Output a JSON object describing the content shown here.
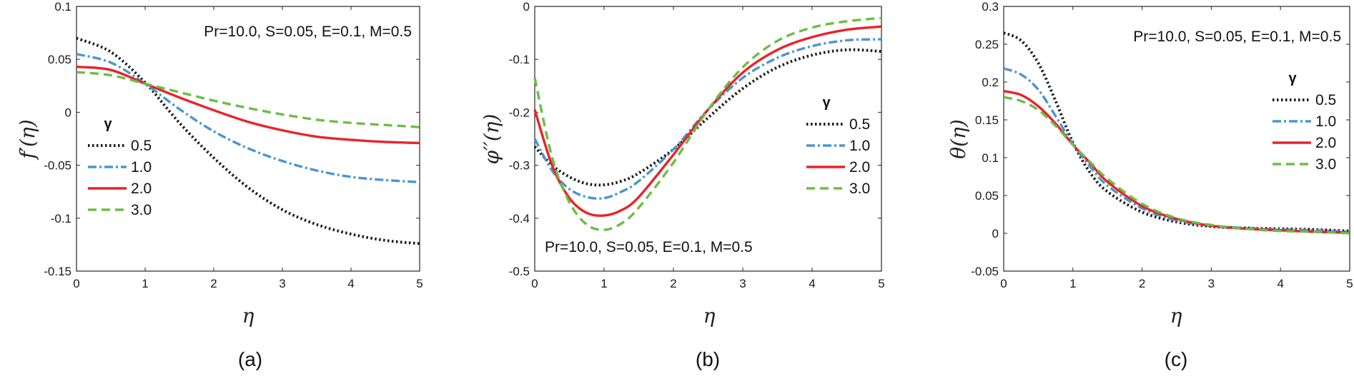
{
  "figure": {
    "panels": [
      "(a)",
      "(b)",
      "(c)"
    ],
    "series_colors": [
      "#1a1a1a",
      "#4a96d0",
      "#e8232a",
      "#6cbd45"
    ],
    "series_dashes": [
      "dot",
      "dashdot",
      "solid",
      "dash"
    ]
  },
  "chart_data": [
    {
      "type": "line",
      "caption": "(a)",
      "xlabel": "η",
      "ylabel": "f′(η)",
      "xlim": [
        0,
        5
      ],
      "ylim": [
        -0.15,
        0.1
      ],
      "xticks": [
        0,
        1,
        2,
        3,
        4,
        5
      ],
      "xtick_labels": [
        "0",
        "1",
        "2",
        "3",
        "4",
        "5"
      ],
      "yticks": [
        -0.15,
        -0.1,
        -0.05,
        0,
        0.05,
        0.1
      ],
      "ytick_labels": [
        "-0.15",
        "-0.1",
        "-0.05",
        "0",
        "0.05",
        "0.1"
      ],
      "annotation": "Pr=10.0, S=0.05, E=0.1, M=0.5",
      "annotation_position": "top-right",
      "legend_title": "γ",
      "legend_position": "bottom-left",
      "x": [
        0,
        0.5,
        1,
        1.5,
        2,
        2.5,
        3,
        3.5,
        4,
        4.5,
        5
      ],
      "series": [
        {
          "name": "0.5",
          "values": [
            0.07,
            0.057,
            0.028,
            -0.01,
            -0.043,
            -0.071,
            -0.092,
            -0.106,
            -0.115,
            -0.121,
            -0.124
          ]
        },
        {
          "name": "1.0",
          "values": [
            0.055,
            0.047,
            0.027,
            0.003,
            -0.018,
            -0.034,
            -0.046,
            -0.055,
            -0.061,
            -0.064,
            -0.066
          ]
        },
        {
          "name": "2.0",
          "values": [
            0.043,
            0.04,
            0.027,
            0.014,
            0.002,
            -0.009,
            -0.017,
            -0.023,
            -0.026,
            -0.028,
            -0.029
          ]
        },
        {
          "name": "3.0",
          "values": [
            0.038,
            0.035,
            0.027,
            0.019,
            0.011,
            0.004,
            -0.002,
            -0.007,
            -0.01,
            -0.012,
            -0.014
          ]
        }
      ]
    },
    {
      "type": "line",
      "caption": "(b)",
      "xlabel": "η",
      "ylabel": "φ′′(η)",
      "xlim": [
        0,
        5
      ],
      "ylim": [
        -0.5,
        0
      ],
      "xticks": [
        0,
        1,
        2,
        3,
        4,
        5
      ],
      "xtick_labels": [
        "0",
        "1",
        "2",
        "3",
        "4",
        "5"
      ],
      "yticks": [
        -0.5,
        -0.4,
        -0.3,
        -0.2,
        -0.1,
        0
      ],
      "ytick_labels": [
        "-0.5",
        "-0.4",
        "-0.3",
        "-0.2",
        "-0.1",
        "0"
      ],
      "annotation": "Pr=10.0, S=0.05, E=0.1, M=0.5",
      "annotation_position": "bottom-left",
      "legend_title": "γ",
      "legend_position": "right",
      "x": [
        0,
        0.25,
        0.5,
        0.75,
        1,
        1.25,
        1.5,
        2,
        2.5,
        3,
        3.5,
        4,
        4.5,
        5
      ],
      "series": [
        {
          "name": "0.5",
          "values": [
            -0.265,
            -0.3,
            -0.322,
            -0.335,
            -0.337,
            -0.33,
            -0.315,
            -0.27,
            -0.21,
            -0.155,
            -0.115,
            -0.092,
            -0.082,
            -0.085
          ]
        },
        {
          "name": "1.0",
          "values": [
            -0.25,
            -0.31,
            -0.345,
            -0.36,
            -0.362,
            -0.35,
            -0.33,
            -0.27,
            -0.195,
            -0.135,
            -0.097,
            -0.075,
            -0.064,
            -0.062
          ]
        },
        {
          "name": "2.0",
          "values": [
            -0.195,
            -0.3,
            -0.362,
            -0.39,
            -0.395,
            -0.385,
            -0.36,
            -0.28,
            -0.195,
            -0.125,
            -0.082,
            -0.058,
            -0.044,
            -0.038
          ]
        },
        {
          "name": "3.0",
          "values": [
            -0.135,
            -0.285,
            -0.37,
            -0.412,
            -0.422,
            -0.41,
            -0.38,
            -0.295,
            -0.195,
            -0.115,
            -0.065,
            -0.04,
            -0.028,
            -0.022
          ]
        }
      ]
    },
    {
      "type": "line",
      "caption": "(c)",
      "xlabel": "η",
      "ylabel": "θ(η)",
      "xlim": [
        0,
        5
      ],
      "ylim": [
        -0.05,
        0.3
      ],
      "xticks": [
        0,
        1,
        2,
        3,
        4,
        5
      ],
      "xtick_labels": [
        "0",
        "1",
        "2",
        "3",
        "4",
        "5"
      ],
      "yticks": [
        -0.05,
        0,
        0.05,
        0.1,
        0.15,
        0.2,
        0.25,
        0.3
      ],
      "ytick_labels": [
        "-0.05",
        "0",
        "0.05",
        "0.1",
        "0.15",
        "0.2",
        "0.25",
        "0.3"
      ],
      "annotation": "Pr=10.0, S=0.05, E=0.1, M=0.5",
      "annotation_position": "top-right",
      "legend_title": "γ",
      "legend_position": "right",
      "x": [
        0,
        0.25,
        0.5,
        0.75,
        1,
        1.25,
        1.5,
        2,
        2.5,
        3,
        3.5,
        4,
        4.5,
        5
      ],
      "series": [
        {
          "name": "0.5",
          "values": [
            0.265,
            0.255,
            0.225,
            0.175,
            0.12,
            0.08,
            0.055,
            0.028,
            0.015,
            0.009,
            0.007,
            0.006,
            0.005,
            0.003
          ]
        },
        {
          "name": "1.0",
          "values": [
            0.218,
            0.21,
            0.19,
            0.155,
            0.118,
            0.088,
            0.063,
            0.033,
            0.017,
            0.01,
            0.007,
            0.005,
            0.004,
            0.002
          ]
        },
        {
          "name": "2.0",
          "values": [
            0.188,
            0.183,
            0.168,
            0.145,
            0.117,
            0.093,
            0.068,
            0.036,
            0.019,
            0.01,
            0.006,
            0.004,
            0.002,
            0.001
          ]
        },
        {
          "name": "3.0",
          "values": [
            0.18,
            0.175,
            0.163,
            0.142,
            0.117,
            0.094,
            0.072,
            0.039,
            0.02,
            0.011,
            0.006,
            0.003,
            0.002,
            0.0
          ]
        }
      ]
    }
  ]
}
